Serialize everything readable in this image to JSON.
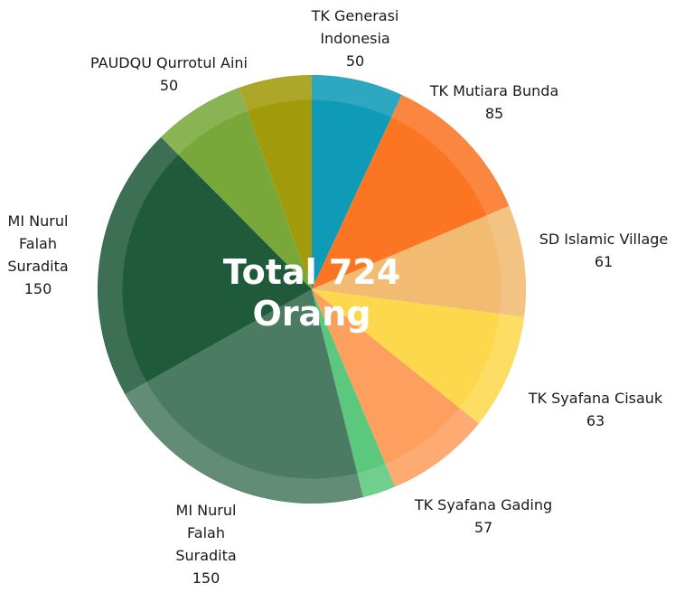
{
  "chart_data": {
    "type": "pie",
    "center_label": "Total 724 Orang",
    "categories": [
      "TK Generasi Indonesia",
      "TK Mutiara Bunda",
      "SD Islamic Village",
      "TK Syafana Cisauk",
      "TK Syafana Gading",
      null,
      "MI Nurul Falah Suradita",
      "MI Nurul Falah Suradita",
      "PAUDQU Qurrotul Aini",
      null
    ],
    "values": [
      50,
      85,
      61,
      63,
      57,
      18,
      150,
      150,
      50,
      40
    ],
    "colors": [
      "#0f9bb8",
      "#fb7523",
      "#f2bb72",
      "#fdd84d",
      "#fd9f5e",
      "#5cc87d",
      "#4b7b62",
      "#1f5a3a",
      "#79a83a",
      "#a19a0a"
    ]
  }
}
